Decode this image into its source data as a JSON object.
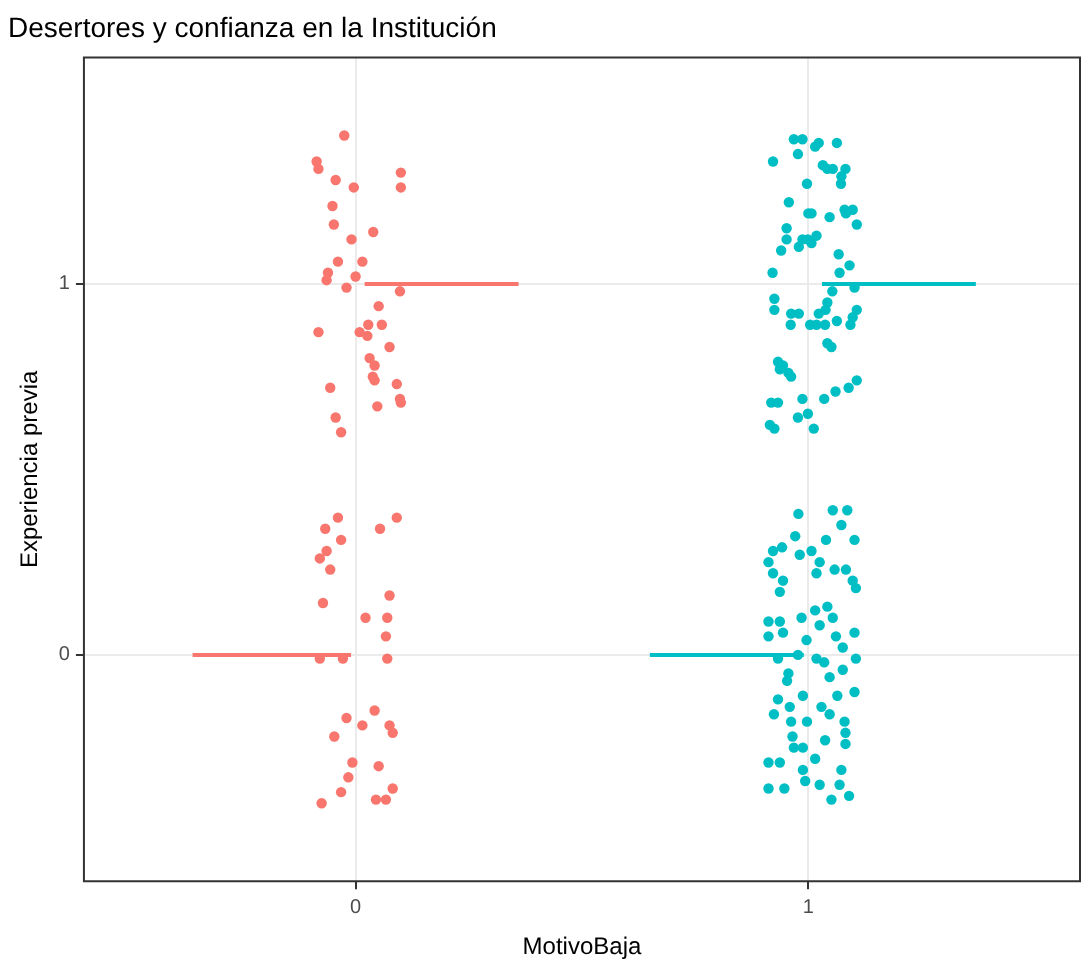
{
  "chart_data": {
    "type": "scatter",
    "title": "Desertores y confianza en la Institución",
    "xlabel": "MotivoBaja",
    "ylabel": "Experiencia previa",
    "xlim": [
      -0.6,
      1.6
    ],
    "xticks": [
      0,
      1
    ],
    "ylim": [
      -0.61,
      1.61
    ],
    "yticks": [
      0,
      1
    ],
    "grid": true,
    "legend": false,
    "series": [
      {
        "type": "scatter",
        "marker": "circle",
        "color": "#f8766d",
        "x": [
          -0.025,
          -0.086,
          -0.082,
          0.1,
          0.1,
          -0.044,
          -0.004,
          -0.051,
          -0.048,
          -0.009,
          0.039,
          -0.039,
          0.015,
          -0.061,
          -0.064,
          0,
          -0.02,
          0.098,
          0.051,
          -0.082,
          0.009,
          0.028,
          0.026,
          0.058,
          0.075,
          0.031,
          0.042,
          0.038,
          0.042,
          0.091,
          0.098,
          0.1,
          -0.056,
          0.048,
          -0.044,
          -0.032,
          -0.039,
          -0.067,
          0.054,
          0.091,
          -0.032,
          -0.064,
          -0.079,
          -0.056,
          -0.072,
          0.075,
          0.022,
          0.07,
          0.067,
          -0.079,
          -0.028,
          0.07,
          0.042,
          -0.02,
          0.015,
          0.075,
          0.082,
          -0.047,
          -0.007,
          0.051,
          -0.016,
          -0.032,
          0.082,
          0.045,
          0.067,
          -0.075
        ],
        "values": [
          1.4,
          1.33,
          1.31,
          1.3,
          1.26,
          1.28,
          1.26,
          1.21,
          1.16,
          1.12,
          1.14,
          1.06,
          1.06,
          1.03,
          1.01,
          1.02,
          0.99,
          0.98,
          0.94,
          0.87,
          0.87,
          0.89,
          0.86,
          0.89,
          0.83,
          0.8,
          0.78,
          0.75,
          0.74,
          0.73,
          0.69,
          0.68,
          0.72,
          0.67,
          0.64,
          0.6,
          0.37,
          0.34,
          0.34,
          0.37,
          0.31,
          0.28,
          0.26,
          0.23,
          0.14,
          0.16,
          0.1,
          0.1,
          0.05,
          -0.01,
          -0.01,
          -0.01,
          -0.15,
          -0.17,
          -0.19,
          -0.19,
          -0.21,
          -0.22,
          -0.29,
          -0.3,
          -0.33,
          -0.37,
          -0.36,
          -0.39,
          -0.39,
          -0.4
        ]
      },
      {
        "type": "scatter",
        "marker": "circle",
        "color": "#00bfc4",
        "x": [
          0.968,
          0.987,
          1.015,
          1.023,
          1.063,
          0.977,
          0.922,
          1.032,
          1.042,
          1.054,
          1.082,
          1.073,
          1.072,
          0.997,
          0.957,
          1.0,
          1.007,
          1.047,
          1.08,
          1.098,
          1.083,
          1.107,
          0.952,
          0.952,
          0.987,
          0.999,
          1.018,
          0.979,
          1.007,
          0.94,
          1.067,
          1.091,
          0.921,
          1.069,
          1.102,
          1.053,
          0.925,
          0.925,
          0.962,
          0.979,
          1.042,
          1.038,
          1.023,
          1.107,
          1.098,
          1.093,
          1.063,
          0.961,
          1.004,
          1.018,
          1.037,
          1.042,
          1.051,
          0.933,
          0.944,
          0.937,
          0.956,
          0.962,
          1.107,
          1.089,
          1.06,
          1.035,
          0.987,
          0.918,
          0.933,
          0.977,
          0.999,
          0.915,
          0.925,
          1.012,
          0.978,
          1.054,
          1.086,
          1.073,
          0.971,
          1.039,
          1.102,
          0.922,
          0.942,
          0.981,
          1.007,
          0.912,
          0.922,
          1.025,
          1.058,
          1.083,
          1.018,
          1.098,
          1.105,
          0.944,
          0.937,
          1.015,
          1.042,
          0.985,
          0.912,
          0.937,
          1.054,
          1.025,
          0.912,
          0.944,
          1.102,
          0.996,
          1.061,
          1.076,
          0.933,
          0.977,
          1.018,
          1.035,
          1.105,
          0.956,
          1.047,
          1.076,
          0.953,
          0.933,
          0.988,
          1.102,
          1.064,
          0.959,
          1.029,
          1.047,
          0.924,
          0.962,
          0.997,
          1.08,
          1.082,
          0.965,
          1.037,
          0.968,
          0.988,
          1.082,
          0.912,
          0.937,
          1.015,
          1.073,
          0.988,
          0.993,
          0.912,
          0.947,
          1.025,
          1.069,
          1.09,
          1.051
        ],
        "values": [
          1.39,
          1.39,
          1.37,
          1.38,
          1.38,
          1.35,
          1.33,
          1.32,
          1.31,
          1.31,
          1.31,
          1.29,
          1.27,
          1.27,
          1.22,
          1.19,
          1.19,
          1.18,
          1.2,
          1.2,
          1.19,
          1.16,
          1.15,
          1.12,
          1.12,
          1.12,
          1.13,
          1.1,
          1.11,
          1.09,
          1.08,
          1.05,
          1.03,
          1.03,
          0.99,
          0.98,
          0.96,
          0.93,
          0.92,
          0.92,
          0.95,
          0.93,
          0.92,
          0.93,
          0.91,
          0.89,
          0.9,
          0.89,
          0.89,
          0.89,
          0.89,
          0.84,
          0.83,
          0.79,
          0.78,
          0.77,
          0.76,
          0.75,
          0.74,
          0.72,
          0.71,
          0.69,
          0.69,
          0.68,
          0.68,
          0.64,
          0.65,
          0.62,
          0.61,
          0.61,
          0.38,
          0.39,
          0.39,
          0.35,
          0.32,
          0.31,
          0.31,
          0.28,
          0.29,
          0.27,
          0.28,
          0.25,
          0.22,
          0.25,
          0.23,
          0.23,
          0.22,
          0.2,
          0.18,
          0.2,
          0.17,
          0.12,
          0.13,
          0.1,
          0.09,
          0.09,
          0.1,
          0.08,
          0.05,
          0.06,
          0.06,
          0.04,
          0.05,
          0.02,
          -0.01,
          0.0,
          -0.01,
          -0.02,
          -0.01,
          -0.05,
          -0.06,
          -0.04,
          -0.07,
          -0.12,
          -0.11,
          -0.1,
          -0.11,
          -0.14,
          -0.14,
          -0.16,
          -0.16,
          -0.18,
          -0.18,
          -0.18,
          -0.21,
          -0.22,
          -0.23,
          -0.25,
          -0.25,
          -0.24,
          -0.29,
          -0.29,
          -0.28,
          -0.31,
          -0.31,
          -0.34,
          -0.36,
          -0.36,
          -0.35,
          -0.35,
          -0.38,
          -0.39
        ]
      },
      {
        "type": "line",
        "color": "#f8766d",
        "x": [
          0.02,
          0.36
        ],
        "values": [
          1,
          1
        ]
      },
      {
        "type": "line",
        "color": "#f8766d",
        "x": [
          -0.36,
          -0.01
        ],
        "values": [
          0,
          0
        ]
      },
      {
        "type": "line",
        "color": "#00bfc4",
        "x": [
          1.03,
          1.37
        ],
        "values": [
          1,
          1
        ]
      },
      {
        "type": "line",
        "color": "#00bfc4",
        "x": [
          0.65,
          0.99
        ],
        "values": [
          0,
          0
        ]
      }
    ]
  }
}
